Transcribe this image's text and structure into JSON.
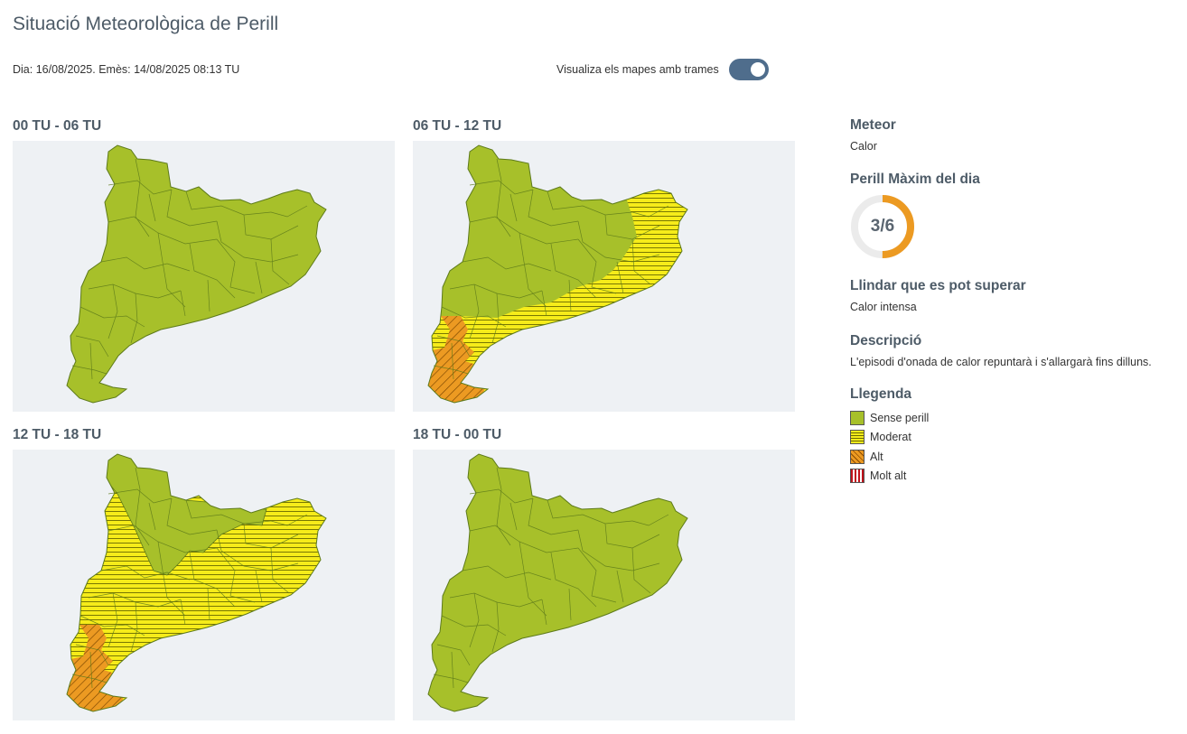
{
  "header": {
    "title": "Situació Meteorològica de Perill",
    "date_line": "Dia: 16/08/2025. Emès: 14/08/2025 08:13 TU",
    "toggle_label": "Visualiza els mapes amb trames",
    "toggle_on": true
  },
  "maps": [
    {
      "label": "00 TU - 06 TU",
      "levels": [
        "Sense perill"
      ]
    },
    {
      "label": "06 TU - 12 TU",
      "levels": [
        "Sense perill",
        "Moderat",
        "Alt"
      ]
    },
    {
      "label": "12 TU - 18 TU",
      "levels": [
        "Sense perill",
        "Moderat",
        "Alt"
      ]
    },
    {
      "label": "18 TU - 00 TU",
      "levels": [
        "Sense perill"
      ]
    }
  ],
  "sidebar": {
    "meteor_title": "Meteor",
    "meteor_value": "Calor",
    "max_title": "Perill Màxim del dia",
    "max_value": "3/6",
    "max_fraction": 0.5,
    "threshold_title": "Llindar que es pot superar",
    "threshold_value": "Calor intensa",
    "desc_title": "Descripció",
    "desc_value": "L'episodi d'onada de calor repuntarà i s'allargarà fins dilluns.",
    "legend_title": "Llegenda",
    "legend": [
      {
        "label": "Sense perill",
        "color": "#a7c02a"
      },
      {
        "label": "Moderat",
        "color": "#f6ec1a"
      },
      {
        "label": "Alt",
        "color": "#ec9a22"
      },
      {
        "label": "Molt alt",
        "color": "#c0121b"
      }
    ]
  },
  "colors": {
    "green": "#a7c02a",
    "yellow": "#f6ec1a",
    "orange": "#ec9a22",
    "accent": "#4f6d8c",
    "gauge": "#ec9a22"
  }
}
